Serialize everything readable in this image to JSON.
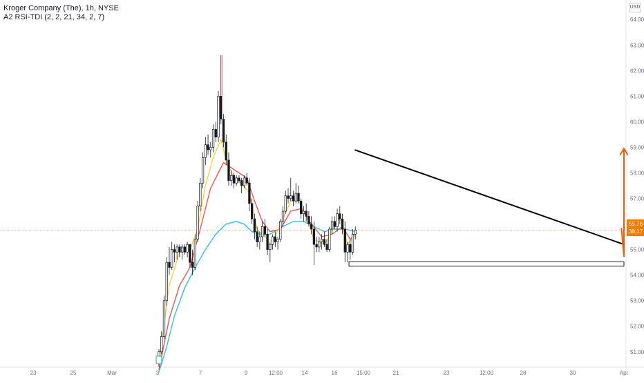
{
  "header": {
    "symbol_line": "Kroger Company (The), 1h, NYSE",
    "indicator_line": "A2 RSI-TDI (2, 2, 21, 34, 2, 7)",
    "currency": "USD"
  },
  "price_badge": {
    "price": "55.76",
    "countdown": "38:17"
  },
  "chart_data": {
    "type": "candlestick",
    "symbol": "Kroger Company (The)",
    "interval": "1h",
    "exchange": "NYSE",
    "ylim": [
      50.4,
      64.6
    ],
    "y_ticks": [
      "64.00",
      "63.00",
      "62.00",
      "61.00",
      "60.00",
      "59.00",
      "58.00",
      "57.00",
      "56.00",
      "55.00",
      "54.00",
      "53.00",
      "52.00",
      "51.00"
    ],
    "x_tick_labels": [
      "23",
      "25",
      "Mar",
      "3",
      "7",
      "9",
      "12:00",
      "14",
      "16",
      "15:00",
      "21",
      "23",
      "12:00",
      "28",
      "30",
      "Apr"
    ],
    "current_price": 55.76,
    "candles": [
      [
        0,
        50.6,
        51.1,
        50.4,
        51.0
      ],
      [
        1,
        51.0,
        51.8,
        50.9,
        51.6
      ],
      [
        2,
        51.6,
        53.2,
        51.5,
        53.0
      ],
      [
        3,
        53.0,
        54.7,
        52.8,
        54.5
      ],
      [
        4,
        54.5,
        55.1,
        54.0,
        54.3
      ],
      [
        5,
        54.3,
        55.3,
        54.2,
        55.0
      ],
      [
        6,
        55.0,
        55.2,
        54.5,
        54.9
      ],
      [
        7,
        54.9,
        55.2,
        54.6,
        55.1
      ],
      [
        8,
        55.1,
        55.2,
        54.7,
        54.9
      ],
      [
        9,
        54.9,
        55.2,
        54.6,
        55.1
      ],
      [
        10,
        55.1,
        55.2,
        54.8,
        54.9
      ],
      [
        11,
        54.9,
        55.3,
        54.7,
        55.2
      ],
      [
        12,
        55.2,
        55.2,
        54.3,
        54.5
      ],
      [
        13,
        54.5,
        55.0,
        54.0,
        54.3
      ],
      [
        14,
        54.3,
        55.6,
        54.2,
        55.4
      ],
      [
        15,
        55.4,
        56.9,
        55.3,
        56.7
      ],
      [
        16,
        56.7,
        57.8,
        56.5,
        57.6
      ],
      [
        17,
        57.6,
        58.8,
        57.4,
        58.6
      ],
      [
        18,
        58.6,
        59.4,
        58.3,
        59.1
      ],
      [
        19,
        59.1,
        59.5,
        58.7,
        58.9
      ],
      [
        20,
        58.9,
        59.2,
        58.6,
        59.0
      ],
      [
        21,
        59.0,
        59.9,
        58.8,
        59.7
      ],
      [
        22,
        59.7,
        60.0,
        59.2,
        59.4
      ],
      [
        23,
        59.4,
        61.2,
        59.2,
        61.0
      ],
      [
        24,
        61.0,
        62.6,
        59.9,
        60.1
      ],
      [
        25,
        60.1,
        60.3,
        59.0,
        59.2
      ],
      [
        26,
        59.2,
        59.5,
        58.3,
        58.5
      ],
      [
        27,
        58.5,
        58.8,
        57.5,
        57.7
      ],
      [
        28,
        57.7,
        58.1,
        57.5,
        57.9
      ],
      [
        29,
        57.9,
        58.0,
        57.4,
        57.6
      ],
      [
        30,
        57.6,
        57.9,
        57.5,
        57.8
      ],
      [
        31,
        57.8,
        57.9,
        57.6,
        57.7
      ],
      [
        32,
        57.7,
        57.8,
        57.2,
        57.5
      ],
      [
        33,
        57.5,
        57.9,
        57.4,
        57.8
      ],
      [
        34,
        57.8,
        58.0,
        57.5,
        57.6
      ],
      [
        35,
        57.6,
        57.8,
        56.5,
        56.8
      ],
      [
        36,
        56.8,
        57.0,
        56.0,
        56.2
      ],
      [
        37,
        56.2,
        56.4,
        55.4,
        55.7
      ],
      [
        38,
        55.7,
        55.9,
        55.1,
        55.3
      ],
      [
        39,
        55.3,
        55.7,
        55.0,
        55.5
      ],
      [
        40,
        55.5,
        56.1,
        55.3,
        55.9
      ],
      [
        41,
        55.9,
        56.2,
        55.5,
        55.6
      ],
      [
        42,
        55.6,
        55.8,
        54.8,
        55.0
      ],
      [
        43,
        55.0,
        55.3,
        54.5,
        55.2
      ],
      [
        44,
        55.2,
        55.6,
        55.0,
        55.5
      ],
      [
        45,
        55.5,
        55.7,
        55.1,
        55.3
      ],
      [
        46,
        55.3,
        55.5,
        55.0,
        55.4
      ],
      [
        47,
        55.4,
        56.2,
        55.3,
        56.1
      ],
      [
        48,
        56.1,
        56.7,
        55.9,
        56.5
      ],
      [
        49,
        56.5,
        57.3,
        56.4,
        57.1
      ],
      [
        50,
        57.1,
        57.4,
        56.8,
        57.0
      ],
      [
        51,
        57.0,
        57.8,
        56.9,
        57.1
      ],
      [
        52,
        57.1,
        57.3,
        56.7,
        56.9
      ],
      [
        53,
        56.9,
        57.6,
        56.8,
        57.2
      ],
      [
        54,
        57.2,
        57.5,
        56.8,
        56.9
      ],
      [
        55,
        56.9,
        57.0,
        56.2,
        56.4
      ],
      [
        56,
        56.4,
        56.7,
        56.1,
        56.5
      ],
      [
        57,
        56.5,
        56.8,
        56.1,
        56.3
      ],
      [
        58,
        56.3,
        56.5,
        55.9,
        56.0
      ],
      [
        59,
        56.0,
        56.3,
        55.6,
        55.8
      ],
      [
        60,
        55.8,
        56.1,
        54.4,
        55.2
      ],
      [
        61,
        55.2,
        55.5,
        54.9,
        55.1
      ],
      [
        62,
        55.1,
        55.5,
        54.9,
        55.3
      ],
      [
        63,
        55.3,
        55.6,
        55.0,
        55.4
      ],
      [
        64,
        55.4,
        55.7,
        55.1,
        55.2
      ],
      [
        65,
        55.2,
        55.4,
        54.9,
        55.0
      ],
      [
        66,
        55.0,
        55.9,
        54.9,
        55.8
      ],
      [
        67,
        55.8,
        56.3,
        55.6,
        56.1
      ],
      [
        68,
        56.1,
        56.3,
        55.8,
        55.9
      ],
      [
        69,
        55.9,
        56.6,
        55.7,
        56.4
      ],
      [
        70,
        56.4,
        56.7,
        56.0,
        56.2
      ],
      [
        71,
        56.2,
        56.4,
        55.6,
        55.8
      ],
      [
        72,
        55.8,
        56.1,
        54.5,
        54.9
      ],
      [
        73,
        54.9,
        55.3,
        54.5,
        55.2
      ],
      [
        74,
        55.2,
        55.4,
        54.6,
        54.9
      ],
      [
        75,
        54.9,
        55.8,
        54.8,
        55.6
      ],
      [
        76,
        55.6,
        55.9,
        55.4,
        55.76
      ]
    ],
    "series": [
      {
        "color": "#26c6da",
        "values": [
          [
            0,
            50.2
          ],
          [
            3,
            51.2
          ],
          [
            6,
            52.4
          ],
          [
            10,
            53.5
          ],
          [
            14,
            54.3
          ],
          [
            18,
            55.0
          ],
          [
            22,
            55.6
          ],
          [
            26,
            56.0
          ],
          [
            30,
            56.1
          ],
          [
            33,
            56.0
          ],
          [
            36,
            55.7
          ],
          [
            39,
            55.6
          ],
          [
            43,
            55.6
          ],
          [
            48,
            55.9
          ],
          [
            52,
            56.1
          ],
          [
            56,
            56.1
          ],
          [
            60,
            55.9
          ],
          [
            64,
            55.7
          ],
          [
            68,
            55.8
          ],
          [
            72,
            55.8
          ],
          [
            76,
            55.7
          ]
        ]
      },
      {
        "color": "#ef5350",
        "values": [
          [
            0,
            50.3
          ],
          [
            4,
            52.3
          ],
          [
            8,
            53.6
          ],
          [
            12,
            54.3
          ],
          [
            16,
            55.8
          ],
          [
            20,
            57.4
          ],
          [
            23,
            58.0
          ],
          [
            25,
            58.4
          ],
          [
            28,
            58.2
          ],
          [
            31,
            58.0
          ],
          [
            34,
            57.8
          ],
          [
            37,
            56.9
          ],
          [
            40,
            56.1
          ],
          [
            43,
            55.7
          ],
          [
            47,
            55.8
          ],
          [
            51,
            56.5
          ],
          [
            55,
            56.6
          ],
          [
            59,
            56.0
          ],
          [
            63,
            55.5
          ],
          [
            67,
            55.6
          ],
          [
            71,
            55.9
          ],
          [
            74,
            55.4
          ],
          [
            76,
            55.6
          ]
        ]
      },
      {
        "color": "#f5d23c",
        "values": [
          [
            0,
            50.5
          ],
          [
            4,
            53.6
          ],
          [
            8,
            54.9
          ],
          [
            12,
            55.0
          ],
          [
            15,
            55.8
          ],
          [
            18,
            57.5
          ],
          [
            21,
            58.6
          ],
          [
            24,
            59.3
          ],
          [
            26,
            58.5
          ],
          [
            29,
            57.8
          ],
          [
            32,
            57.6
          ],
          [
            35,
            57.2
          ],
          [
            38,
            55.8
          ],
          [
            41,
            55.5
          ],
          [
            44,
            55.3
          ],
          [
            48,
            56.2
          ],
          [
            51,
            56.9
          ],
          [
            54,
            56.9
          ],
          [
            57,
            56.3
          ],
          [
            60,
            55.4
          ],
          [
            64,
            55.2
          ],
          [
            68,
            55.9
          ],
          [
            70,
            56.3
          ],
          [
            73,
            55.2
          ],
          [
            76,
            55.6
          ]
        ]
      }
    ]
  },
  "drawings": {
    "descending_trendline": {
      "from": [
        8.7,
        58.9
      ],
      "to": [
        19.5,
        55.2
      ],
      "color": "#000000"
    },
    "support_zone": {
      "x_from": 8.5,
      "x_to": 19.8,
      "y_bottom": 54.35,
      "y_top": 54.52
    },
    "projection_path": {
      "color": "#f05a0a",
      "points": [
        [
          14.95,
          55.85
        ],
        [
          15.35,
          54.72
        ],
        [
          16.1,
          55.65
        ],
        [
          16.5,
          54.98
        ],
        [
          17.3,
          56.1
        ],
        [
          17.7,
          55.75
        ],
        [
          19.5,
          58.95
        ]
      ]
    },
    "current_price_line_color": "#f5d23c"
  }
}
